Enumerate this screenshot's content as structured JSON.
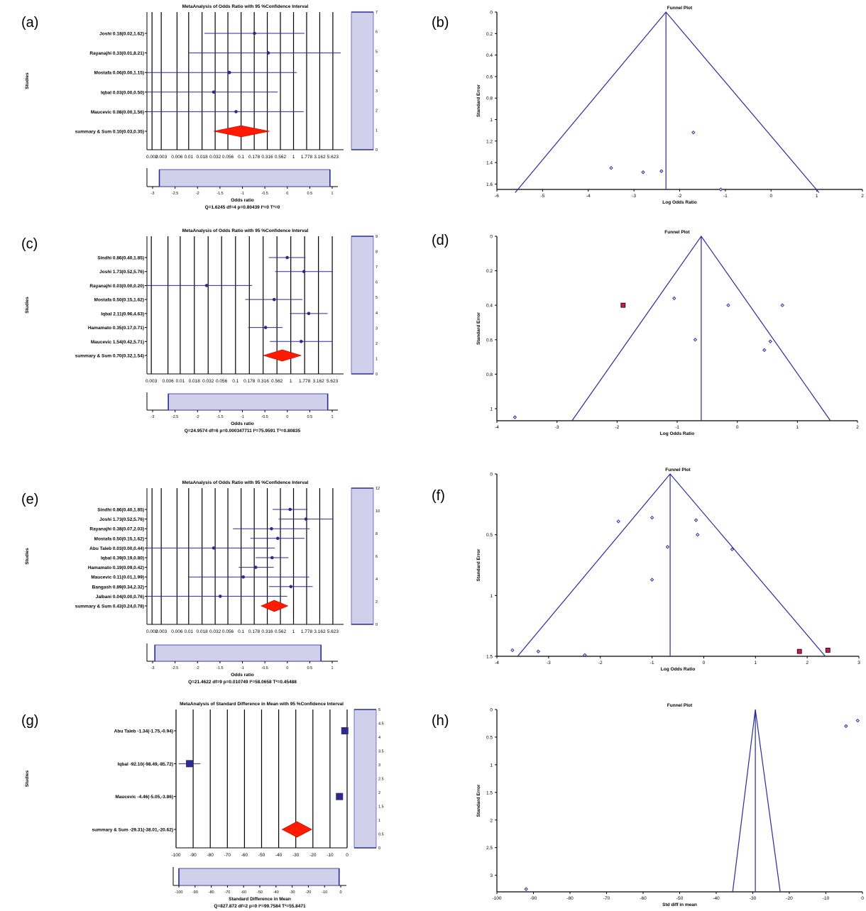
{
  "panel_letters": [
    "(a)",
    "(b)",
    "(c)",
    "(d)",
    "(e)",
    "(f)",
    "(g)",
    "(h)"
  ],
  "colors": {
    "axis": "#000000",
    "blue": "#2a2a9a",
    "navy": "#2e2a8a",
    "red": "#ff1a00",
    "shade": "#d0d0ea",
    "pink": "#d4145a"
  },
  "chart_data": [
    {
      "id": "a",
      "type": "forest",
      "title": "MetaAnalysis of Odds Ratio with 95 %Confidence Interval",
      "ylabel": "Studies",
      "xlabel": "Odds ratio",
      "stats": "Q=1.6245 df=4 p=0.80439 I²=0 T²=0",
      "x_scale": "log10",
      "xlim": [
        0.0016,
        9
      ],
      "tick_labels": [
        "0.002",
        "0.003",
        "0.006",
        "0.01",
        "0.018",
        "0.032",
        "0.056",
        "0.1",
        "0.178",
        "0.316",
        "0.562",
        "1",
        "1.778",
        "3.162",
        "5.623"
      ],
      "studies": [
        {
          "label": "Joshi 0.18(0.02,1.62)",
          "or": 0.18,
          "lo": 0.02,
          "hi": 1.62
        },
        {
          "label": "Rayanajhi 0.33(0.01,8.21)",
          "or": 0.33,
          "lo": 0.01,
          "hi": 8.21
        },
        {
          "label": "Mostafa 0.06(0.00,1.15)",
          "or": 0.06,
          "lo": 0.0,
          "hi": 1.15
        },
        {
          "label": "Iqbal 0.03(0.00,0.50)",
          "or": 0.03,
          "lo": 0.0,
          "hi": 0.5
        },
        {
          "label": "Maucevic 0.08(0.00,1.56)",
          "or": 0.08,
          "lo": 0.0,
          "hi": 1.56
        }
      ],
      "summary": {
        "label": "summary & Sum 0.10(0.03,0.35)",
        "or": 0.1,
        "lo": 0.03,
        "hi": 0.35
      },
      "side_ticks": [
        "7",
        "6",
        "5",
        "4",
        "3",
        "2",
        "1",
        "0"
      ],
      "bottom_ticks": [
        "-3",
        "-2.5",
        "-2",
        "-1.5",
        "-1",
        "-0.5",
        "0",
        "0.5",
        "1"
      ],
      "bottom_range": [
        -2.85,
        0.95
      ]
    },
    {
      "id": "b",
      "type": "funnel",
      "title": "Funnel Plot",
      "xlabel": "Log Odds Ratio",
      "ylabel": "Standard Error",
      "xlim": [
        -6,
        2
      ],
      "ylim": [
        0,
        1.65
      ],
      "xticks": [
        "-6",
        "-5",
        "-4",
        "-3",
        "-2",
        "-1",
        "0",
        "1",
        "2"
      ],
      "yticks": [
        "0",
        "0.2",
        "0.4",
        "0.6",
        "0.8",
        "1",
        "1.2",
        "1.4",
        "1.6"
      ],
      "center": -2.3,
      "funnel_base": [
        -5.6,
        1.05
      ],
      "funnel_base_se": 1.68,
      "points": [
        [
          -3.5,
          1.45
        ],
        [
          -2.8,
          1.49
        ],
        [
          -2.4,
          1.48
        ],
        [
          -1.7,
          1.12
        ],
        [
          -1.1,
          1.65
        ]
      ],
      "imputed": []
    },
    {
      "id": "c",
      "type": "forest",
      "title": "MetaAnalysis of Odds Ratio with 95 %Confidence Interval",
      "ylabel": "Studies",
      "xlabel": "Odds ratio",
      "stats": "Q=24.9574 df=6 p=0.000347711 I²=75.9591 T²=0.80835",
      "x_scale": "log10",
      "xlim": [
        0.0025,
        9
      ],
      "tick_labels": [
        "0.003",
        "0.006",
        "0.01",
        "0.018",
        "0.032",
        "0.056",
        "0.1",
        "0.178",
        "0.316",
        "0.562",
        "1",
        "1.778",
        "3.162",
        "5.623"
      ],
      "studies": [
        {
          "label": "Sindhi 0.86(0.40,1.85)",
          "or": 0.86,
          "lo": 0.4,
          "hi": 1.85
        },
        {
          "label": "Joshi 1.73(0.52,5.76)",
          "or": 1.73,
          "lo": 0.52,
          "hi": 5.76
        },
        {
          "label": "Rayanajhi 0.03(0.00,0.20)",
          "or": 0.03,
          "lo": 0.0,
          "hi": 0.2
        },
        {
          "label": "Mostafa 0.50(0.15,1.62)",
          "or": 0.5,
          "lo": 0.15,
          "hi": 1.62
        },
        {
          "label": "Iqbal 2.11(0.96,4.63)",
          "or": 2.11,
          "lo": 0.96,
          "hi": 4.63
        },
        {
          "label": "Hamamato 0.35(0.17,0.71)",
          "or": 0.35,
          "lo": 0.17,
          "hi": 0.71
        },
        {
          "label": "Maucevic 1.54(0.42,5.71)",
          "or": 1.54,
          "lo": 0.42,
          "hi": 5.71
        }
      ],
      "summary": {
        "label": "summary & Sum 0.70(0.32,1.54)",
        "or": 0.7,
        "lo": 0.32,
        "hi": 1.54
      },
      "side_ticks": [
        "9",
        "8",
        "7",
        "6",
        "5",
        "4",
        "3",
        "2",
        "1",
        "0"
      ],
      "bottom_ticks": [
        "-3",
        "-2.5",
        "-2",
        "-1.5",
        "-1",
        "-0.5",
        "0",
        "0.5",
        "1"
      ],
      "bottom_range": [
        -2.65,
        0.9
      ]
    },
    {
      "id": "d",
      "type": "funnel",
      "title": "Funnel Plot",
      "xlabel": "Log Odds Ratio",
      "ylabel": "Standard Error",
      "xlim": [
        -4,
        2
      ],
      "ylim": [
        0,
        1.07
      ],
      "xticks": [
        "-4",
        "-3",
        "-2",
        "-1",
        "0",
        "1",
        "2"
      ],
      "yticks": [
        "0",
        "0.2",
        "0.4",
        "0.6",
        "0.8",
        "1"
      ],
      "center": -0.6,
      "funnel_base": [
        -2.75,
        1.55
      ],
      "funnel_base_se": 1.07,
      "points": [
        [
          -3.7,
          1.05
        ],
        [
          -1.05,
          0.36
        ],
        [
          -0.7,
          0.6
        ],
        [
          -0.15,
          0.4
        ],
        [
          0.45,
          0.66
        ],
        [
          0.55,
          0.61
        ],
        [
          0.75,
          0.4
        ]
      ],
      "imputed": [
        [
          -1.9,
          0.4
        ]
      ]
    },
    {
      "id": "e",
      "type": "forest",
      "title": "MetaAnalysis of Odds Ratio with 95 %Confidence Interval",
      "ylabel": "Studies",
      "xlabel": "Odds ratio",
      "stats": "Q=21.4622 df=9 p=0.010749 I²=58.0658 T²=0.45488",
      "x_scale": "log10",
      "xlim": [
        0.0016,
        9
      ],
      "tick_labels": [
        "0.002",
        "0.003",
        "0.006",
        "0.01",
        "0.018",
        "0.032",
        "0.056",
        "0.1",
        "0.178",
        "0.316",
        "0.562",
        "1",
        "1.778",
        "3.162",
        "5.623"
      ],
      "studies": [
        {
          "label": "Sindhi 0.86(0.40,1.85)",
          "or": 0.86,
          "lo": 0.4,
          "hi": 1.85
        },
        {
          "label": "Joshi 1.73(0.52,5.76)",
          "or": 1.73,
          "lo": 0.52,
          "hi": 5.76
        },
        {
          "label": "Rayanajhi 0.38(0.07,2.03)",
          "or": 0.38,
          "lo": 0.07,
          "hi": 2.03
        },
        {
          "label": "Mostafa 0.50(0.15,1.62)",
          "or": 0.5,
          "lo": 0.15,
          "hi": 1.62
        },
        {
          "label": "Abu Taleb 0.03(0.00,0.44)",
          "or": 0.03,
          "lo": 0.0,
          "hi": 0.44
        },
        {
          "label": "Iqbal 0.39(0.19,0.80)",
          "or": 0.39,
          "lo": 0.19,
          "hi": 0.8
        },
        {
          "label": "Hamamato 0.19(0.09,0.42)",
          "or": 0.19,
          "lo": 0.09,
          "hi": 0.42
        },
        {
          "label": "Maucevic 0.11(0.01,1.99)",
          "or": 0.11,
          "lo": 0.01,
          "hi": 1.99
        },
        {
          "label": "Bangash 0.89(0.34,2.32)",
          "or": 0.89,
          "lo": 0.34,
          "hi": 2.32
        },
        {
          "label": "Jalbani 0.04(0.00,0.76)",
          "or": 0.04,
          "lo": 0.0,
          "hi": 0.76
        }
      ],
      "summary": {
        "label": "summary & Sum 0.43(0.24,0.78)",
        "or": 0.43,
        "lo": 0.24,
        "hi": 0.78
      },
      "side_ticks": [
        "12",
        "10",
        "8",
        "6",
        "4",
        "2",
        "0"
      ],
      "bottom_ticks": [
        "-3",
        "-2.5",
        "-2",
        "-1.5",
        "-1",
        "-0.5",
        "0",
        "0.5",
        "1"
      ],
      "bottom_range": [
        -2.95,
        0.75
      ]
    },
    {
      "id": "f",
      "type": "funnel",
      "title": "Funnel Plot",
      "xlabel": "Log Odds Ratio",
      "ylabel": "Standard Error",
      "xlim": [
        -4,
        3
      ],
      "ylim": [
        0,
        1.5
      ],
      "xticks": [
        "-4",
        "-3",
        "-2",
        "-1",
        "0",
        "1",
        "2",
        "3"
      ],
      "yticks": [
        "0",
        "0.5",
        "1",
        "1.5"
      ],
      "center": -0.65,
      "funnel_base": [
        -3.6,
        2.35
      ],
      "funnel_base_se": 1.5,
      "points": [
        [
          -3.7,
          1.45
        ],
        [
          -3.2,
          1.46
        ],
        [
          -2.3,
          1.49
        ],
        [
          -1.65,
          0.39
        ],
        [
          -1.0,
          0.36
        ],
        [
          -0.7,
          0.6
        ],
        [
          -0.15,
          0.38
        ],
        [
          -0.12,
          0.5
        ],
        [
          0.55,
          0.62
        ],
        [
          -1.0,
          0.87
        ]
      ],
      "imputed": [
        [
          1.85,
          1.46
        ],
        [
          2.4,
          1.45
        ]
      ]
    },
    {
      "id": "g",
      "type": "forest",
      "title": "MetaAnalysis of Standard Difference in Mean  with 95 %Confidence Interval",
      "ylabel": "Studies",
      "xlabel": "Standard Difference in Mean",
      "stats": "Q=827.872 df=2 p=0 I²=99.7584 T²=55.8471",
      "x_scale": "linear",
      "xlim": [
        -100,
        0
      ],
      "tick_labels": [
        "-100",
        "-90",
        "-80",
        "-70",
        "-60",
        "-50",
        "-40",
        "-30",
        "-20",
        "-10",
        "0"
      ],
      "studies": [
        {
          "label": "Abu Taleb -1.34(-1.75,-0.94)",
          "or": -1.34,
          "lo": -1.75,
          "hi": -0.94
        },
        {
          "label": "Iqbal -92.10(-98.49,-85.72)",
          "or": -92.1,
          "lo": -98.49,
          "hi": -85.72
        },
        {
          "label": "Maucevic -4.46(-5.05,-3.86)",
          "or": -4.46,
          "lo": -5.05,
          "hi": -3.86
        }
      ],
      "summary": {
        "label": "summary & Sum -29.31(-38.01,-20.62)",
        "or": -29.31,
        "lo": -38.01,
        "hi": -20.62
      },
      "side_ticks": [
        "5",
        "4.5",
        "4",
        "3.5",
        "3",
        "2.5",
        "2",
        "1.5",
        "1",
        "0.5",
        "0"
      ],
      "bottom_ticks": [
        "-100",
        "-90",
        "-80",
        "-70",
        "-60",
        "-50",
        "-40",
        "-30",
        "-20",
        "-10",
        "0"
      ],
      "bottom_range": [
        -100,
        -1
      ]
    },
    {
      "id": "h",
      "type": "funnel",
      "title": "Funnel Plot",
      "xlabel": "Std diff in mean",
      "ylabel": "Standard Error",
      "xlim": [
        -100,
        0
      ],
      "ylim": [
        0,
        3.3
      ],
      "xticks": [
        "-100",
        "-90",
        "-80",
        "-70",
        "-60",
        "-50",
        "-40",
        "-30",
        "-20",
        "-10",
        "0"
      ],
      "yticks": [
        "0",
        "0.5",
        "1",
        "1.5",
        "2",
        "2.5",
        "3"
      ],
      "center": -29.3,
      "funnel_base": [
        -35.5,
        -22.5
      ],
      "funnel_base_se": 3.3,
      "points": [
        [
          -92,
          3.25
        ],
        [
          -4.5,
          0.3
        ],
        [
          -1.3,
          0.2
        ]
      ],
      "imputed": []
    }
  ]
}
